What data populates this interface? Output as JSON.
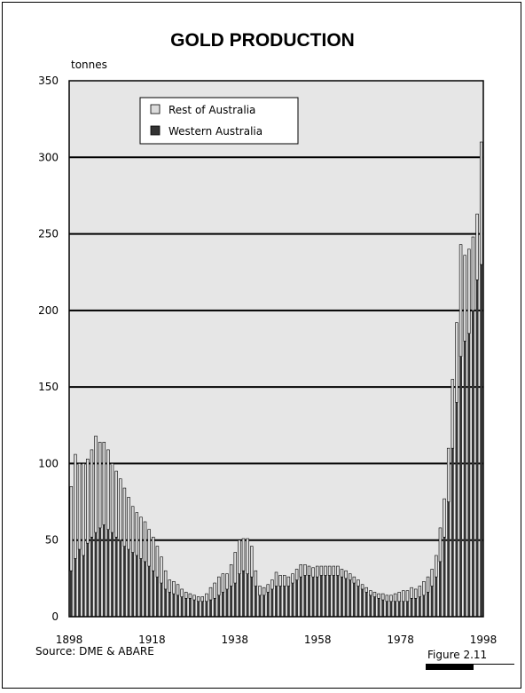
{
  "header": {
    "unit": "tonnes",
    "source": "Source: DME & ABARE",
    "figure_label": "Figure 2.11"
  },
  "chart_data": {
    "type": "bar",
    "stacked": true,
    "title": "GOLD PRODUCTION",
    "xlabel": "",
    "ylabel": "tonnes",
    "xlim": [
      1898,
      1998
    ],
    "ylim": [
      0,
      350
    ],
    "x_ticks": [
      1898,
      1918,
      1938,
      1958,
      1978,
      1998
    ],
    "y_ticks": [
      0,
      50,
      100,
      150,
      200,
      250,
      300,
      350
    ],
    "grid": "horizontal",
    "legend_position": "top-left",
    "colors": {
      "plot_background": "#e6e6e6",
      "Rest of Australia": "#dcdcdc",
      "Western Australia": "#333333"
    },
    "categories": [
      1898,
      1899,
      1900,
      1901,
      1902,
      1903,
      1904,
      1905,
      1906,
      1907,
      1908,
      1909,
      1910,
      1911,
      1912,
      1913,
      1914,
      1915,
      1916,
      1917,
      1918,
      1919,
      1920,
      1921,
      1922,
      1923,
      1924,
      1925,
      1926,
      1927,
      1928,
      1929,
      1930,
      1931,
      1932,
      1933,
      1934,
      1935,
      1936,
      1937,
      1938,
      1939,
      1940,
      1941,
      1942,
      1943,
      1944,
      1945,
      1946,
      1947,
      1948,
      1949,
      1950,
      1951,
      1952,
      1953,
      1954,
      1955,
      1956,
      1957,
      1958,
      1959,
      1960,
      1961,
      1962,
      1963,
      1964,
      1965,
      1966,
      1967,
      1968,
      1969,
      1970,
      1971,
      1972,
      1973,
      1974,
      1975,
      1976,
      1977,
      1978,
      1979,
      1980,
      1981,
      1982,
      1983,
      1984,
      1985,
      1986,
      1987,
      1988,
      1989,
      1990,
      1991,
      1992,
      1993,
      1994,
      1995,
      1996,
      1997,
      1998
    ],
    "series": [
      {
        "name": "Western Australia",
        "values": [
          30,
          38,
          44,
          40,
          48,
          52,
          55,
          58,
          60,
          57,
          55,
          52,
          50,
          46,
          44,
          42,
          40,
          38,
          36,
          33,
          30,
          26,
          22,
          18,
          16,
          15,
          14,
          13,
          12,
          12,
          11,
          10,
          10,
          10,
          11,
          12,
          14,
          16,
          18,
          20,
          22,
          28,
          30,
          28,
          26,
          20,
          14,
          14,
          16,
          18,
          20,
          20,
          20,
          20,
          22,
          24,
          26,
          27,
          27,
          26,
          26,
          27,
          27,
          27,
          27,
          27,
          26,
          25,
          24,
          22,
          20,
          18,
          16,
          14,
          13,
          12,
          11,
          10,
          10,
          10,
          10,
          10,
          10,
          12,
          12,
          13,
          14,
          16,
          20,
          26,
          36,
          52,
          75,
          110,
          140,
          170,
          180,
          185,
          200,
          220,
          230
        ],
        "note": "approximate readings"
      },
      {
        "name": "Rest of Australia",
        "values": [
          55,
          68,
          56,
          60,
          55,
          57,
          63,
          56,
          54,
          52,
          45,
          43,
          40,
          38,
          34,
          30,
          28,
          27,
          26,
          24,
          22,
          20,
          17,
          12,
          8,
          8,
          7,
          5,
          4,
          3,
          3,
          3,
          3,
          5,
          8,
          10,
          12,
          12,
          10,
          14,
          20,
          22,
          21,
          23,
          20,
          10,
          6,
          5,
          5,
          6,
          9,
          7,
          7,
          6,
          6,
          7,
          8,
          7,
          6,
          6,
          7,
          6,
          6,
          6,
          6,
          6,
          5,
          5,
          4,
          4,
          4,
          3,
          3,
          3,
          3,
          3,
          4,
          4,
          4,
          5,
          6,
          7,
          7,
          7,
          6,
          7,
          9,
          10,
          11,
          14,
          22,
          25,
          35,
          45,
          52,
          73,
          56,
          55,
          48,
          43,
          80
        ]
      }
    ]
  }
}
